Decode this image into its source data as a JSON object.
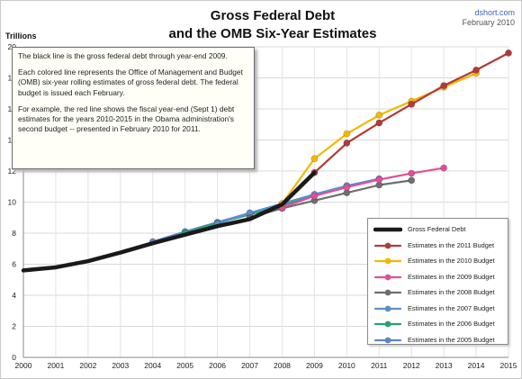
{
  "source": {
    "site": "dshort.com",
    "date": "February 2010"
  },
  "note": {
    "paragraphs": [
      "The black line is the gross federal debt through year-end 2009.",
      "Each colored line represents the Office of Management and Budget (OMB) six-year rolling estimates of gross federal debt.  The federal budget is issued each February.",
      "For example, the red line shows the fiscal year-end (Sept 1) debt estimates for the years 2010-2015 in the Obama administration's second budget -- presented in February 2010  for 2011."
    ]
  },
  "chart_data": {
    "type": "line",
    "title": "Gross Federal Debt",
    "subtitle": "and the OMB Six-Year Estimates",
    "ylabel": "Trillions",
    "xlim": [
      2000,
      2015
    ],
    "ylim": [
      0,
      20
    ],
    "x_ticks": [
      2000,
      2001,
      2002,
      2003,
      2004,
      2005,
      2006,
      2007,
      2008,
      2009,
      2010,
      2011,
      2012,
      2013,
      2014,
      2015
    ],
    "y_ticks": [
      0,
      2,
      4,
      6,
      8,
      10,
      12,
      14,
      16,
      18,
      20
    ],
    "grid": true,
    "legend_position": "bottom-right",
    "series": [
      {
        "name": "Gross Federal Debt",
        "color": "#1a1a1a",
        "marker": false,
        "x": [
          2000,
          2001,
          2002,
          2003,
          2004,
          2005,
          2006,
          2007,
          2008,
          2009
        ],
        "y": [
          5.6,
          5.8,
          6.2,
          6.75,
          7.35,
          7.9,
          8.45,
          8.9,
          9.85,
          11.9
        ]
      },
      {
        "name": "Estimates in the 2011 Budget",
        "color": "#b23a3a",
        "marker": true,
        "x": [
          2009,
          2010,
          2011,
          2012,
          2013,
          2014,
          2015
        ],
        "y": [
          11.9,
          13.8,
          15.1,
          16.3,
          17.5,
          18.5,
          19.6
        ]
      },
      {
        "name": "Estimates in the 2010 Budget",
        "color": "#f5b800",
        "marker": true,
        "x": [
          2008,
          2009,
          2010,
          2011,
          2012,
          2013,
          2014
        ],
        "y": [
          9.9,
          12.8,
          14.4,
          15.6,
          16.5,
          17.4,
          18.3
        ]
      },
      {
        "name": "Estimates in the 2009 Budget",
        "color": "#e0509a",
        "marker": true,
        "x": [
          2008,
          2009,
          2010,
          2011,
          2012,
          2013
        ],
        "y": [
          9.65,
          10.4,
          10.95,
          11.45,
          11.85,
          12.2
        ]
      },
      {
        "name": "Estimates in the 2008 Budget",
        "color": "#6e6e6e",
        "marker": true,
        "x": [
          2007,
          2008,
          2009,
          2010,
          2011,
          2012
        ],
        "y": [
          9.0,
          9.6,
          10.1,
          10.6,
          11.1,
          11.4
        ]
      },
      {
        "name": "Estimates in the 2007 Budget",
        "color": "#5b8fcf",
        "marker": true,
        "x": [
          2006,
          2007,
          2008,
          2009,
          2010,
          2011
        ],
        "y": [
          8.6,
          9.3,
          9.9,
          10.5,
          11.05,
          11.5
        ]
      },
      {
        "name": "Estimates in the 2006 Budget",
        "color": "#2aa06c",
        "marker": true,
        "x": [
          2005,
          2006,
          2007,
          2008,
          2009,
          2010
        ],
        "y": [
          8.0,
          8.65,
          9.2,
          9.8,
          10.45,
          11.05
        ]
      },
      {
        "name": "Estimates in the 2005 Budget",
        "color": "#5f86c2",
        "marker": true,
        "x": [
          2004,
          2005,
          2006,
          2007,
          2008,
          2009
        ],
        "y": [
          7.45,
          8.1,
          8.7,
          9.3,
          9.85,
          10.45
        ]
      }
    ]
  }
}
